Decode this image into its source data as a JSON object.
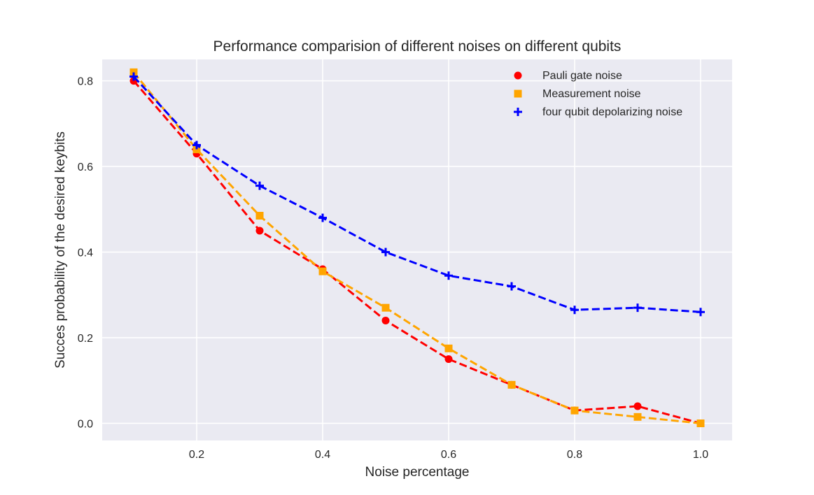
{
  "chart_data": {
    "type": "line",
    "title": "Performance comparision of different noises on different qubits",
    "xlabel": "Noise percentage",
    "ylabel": "Succes probability of the desired keybits",
    "xlim": [
      0.05,
      1.05
    ],
    "ylim": [
      -0.04,
      0.85
    ],
    "xticks": [
      0.2,
      0.4,
      0.6,
      0.8,
      1.0
    ],
    "xtick_labels": [
      "0.2",
      "0.4",
      "0.6",
      "0.8",
      "1.0"
    ],
    "yticks": [
      0.0,
      0.2,
      0.4,
      0.6,
      0.8
    ],
    "ytick_labels": [
      "0.0",
      "0.2",
      "0.4",
      "0.6",
      "0.8"
    ],
    "grid": true,
    "background": "#eaeaf2",
    "legend_position": "top-right",
    "x": [
      0.1,
      0.2,
      0.3,
      0.4,
      0.5,
      0.6,
      0.7,
      0.8,
      0.9,
      1.0
    ],
    "series": [
      {
        "name": "Pauli gate noise",
        "color": "#ff0000",
        "marker": "circle",
        "linestyle": "dashed",
        "values": [
          0.8,
          0.63,
          0.45,
          0.36,
          0.24,
          0.15,
          0.09,
          0.03,
          0.04,
          0.0
        ]
      },
      {
        "name": "Measurement noise",
        "color": "#ffa500",
        "marker": "square",
        "linestyle": "dashed",
        "values": [
          0.82,
          0.64,
          0.485,
          0.355,
          0.27,
          0.175,
          0.09,
          0.03,
          0.015,
          0.0
        ]
      },
      {
        "name": "four qubit depolarizing noise",
        "color": "#0000ff",
        "marker": "plus",
        "linestyle": "dashed",
        "values": [
          0.81,
          0.65,
          0.555,
          0.48,
          0.4,
          0.345,
          0.32,
          0.265,
          0.27,
          0.26
        ]
      }
    ]
  }
}
